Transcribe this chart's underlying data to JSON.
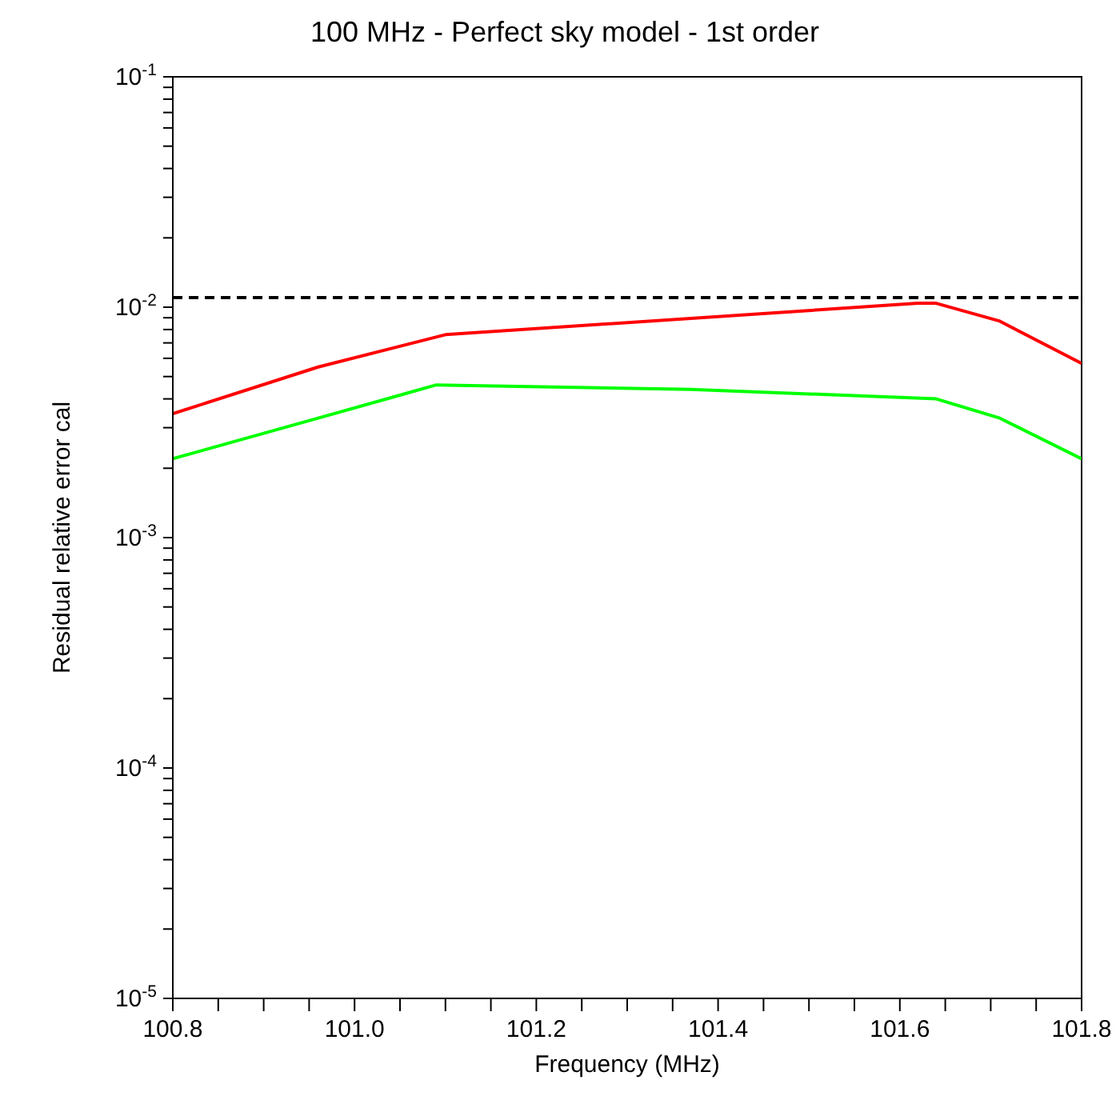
{
  "chart_data": {
    "type": "line",
    "title": "100 MHz - Perfect sky model - 1st order",
    "xlabel": "Frequency (MHz)",
    "ylabel": "Residual relative error cal",
    "log": "y",
    "marker": "none",
    "line_style": "solid",
    "xlim": [
      100.8,
      101.8
    ],
    "xticks": [
      {
        "value": 100.8,
        "label": "100.8"
      },
      {
        "value": 100.85,
        "label": null
      },
      {
        "value": 100.9,
        "label": null
      },
      {
        "value": 100.95,
        "label": null
      },
      {
        "value": 101.0,
        "label": "101.0"
      },
      {
        "value": 101.05,
        "label": null
      },
      {
        "value": 101.1,
        "label": null
      },
      {
        "value": 101.15,
        "label": null
      },
      {
        "value": 101.2,
        "label": "101.2"
      },
      {
        "value": 101.25,
        "label": null
      },
      {
        "value": 101.3,
        "label": null
      },
      {
        "value": 101.35,
        "label": null
      },
      {
        "value": 101.4,
        "label": "101.4"
      },
      {
        "value": 101.45,
        "label": null
      },
      {
        "value": 101.5,
        "label": null
      },
      {
        "value": 101.55,
        "label": null
      },
      {
        "value": 101.6,
        "label": "101.6"
      },
      {
        "value": 101.65,
        "label": null
      },
      {
        "value": 101.7,
        "label": null
      },
      {
        "value": 101.75,
        "label": null
      },
      {
        "value": 101.8,
        "label": "101.8"
      }
    ],
    "ylim": [
      1e-05,
      0.1
    ],
    "yticks": [
      {
        "value": 1e-05,
        "label": "10$^{-5}$"
      },
      {
        "value": 2e-05,
        "label": null
      },
      {
        "value": 3e-05,
        "label": null
      },
      {
        "value": 4e-05,
        "label": null
      },
      {
        "value": 5e-05,
        "label": null
      },
      {
        "value": 6e-05,
        "label": null
      },
      {
        "value": 7e-05,
        "label": null
      },
      {
        "value": 8e-05,
        "label": null
      },
      {
        "value": 9e-05,
        "label": null
      },
      {
        "value": 0.0001,
        "label": "10$^{-4}$"
      },
      {
        "value": 0.0002,
        "label": null
      },
      {
        "value": 0.0003,
        "label": null
      },
      {
        "value": 0.0004,
        "label": null
      },
      {
        "value": 0.0005,
        "label": null
      },
      {
        "value": 0.0006,
        "label": null
      },
      {
        "value": 0.0007,
        "label": null
      },
      {
        "value": 0.0008,
        "label": null
      },
      {
        "value": 0.0009,
        "label": null
      },
      {
        "value": 0.001,
        "label": "10$^{-3}$"
      },
      {
        "value": 0.002,
        "label": null
      },
      {
        "value": 0.003,
        "label": null
      },
      {
        "value": 0.004,
        "label": null
      },
      {
        "value": 0.005,
        "label": null
      },
      {
        "value": 0.006,
        "label": null
      },
      {
        "value": 0.007,
        "label": null
      },
      {
        "value": 0.008,
        "label": null
      },
      {
        "value": 0.009,
        "label": null
      },
      {
        "value": 0.01,
        "label": "10$^{-2}$"
      },
      {
        "value": 0.02,
        "label": null
      },
      {
        "value": 0.03,
        "label": null
      },
      {
        "value": 0.04,
        "label": null
      },
      {
        "value": 0.05,
        "label": null
      },
      {
        "value": 0.06,
        "label": null
      },
      {
        "value": 0.07,
        "label": null
      },
      {
        "value": 0.08,
        "label": null
      },
      {
        "value": 0.09,
        "label": null
      },
      {
        "value": 0.1,
        "label": "10$^{-1}$"
      }
    ],
    "ref_lines": [
      {
        "axis": "y",
        "value": 0.011,
        "color": "#000000",
        "line_style": "dashed"
      }
    ],
    "series": [
      {
        "color": "#ff0000",
        "x": [
          100.8,
          100.96,
          101.1,
          101.62,
          101.64,
          101.71,
          101.8
        ],
        "values": [
          0.00345,
          0.0055,
          0.0076,
          0.0104,
          0.0104,
          0.0087,
          0.0057
        ]
      },
      {
        "color": "#00ff00",
        "x": [
          100.8,
          100.96,
          101.09,
          101.37,
          101.64,
          101.71,
          101.8
        ],
        "values": [
          0.0022,
          0.0033,
          0.0046,
          0.0044,
          0.004,
          0.0033,
          0.0022
        ]
      }
    ]
  }
}
